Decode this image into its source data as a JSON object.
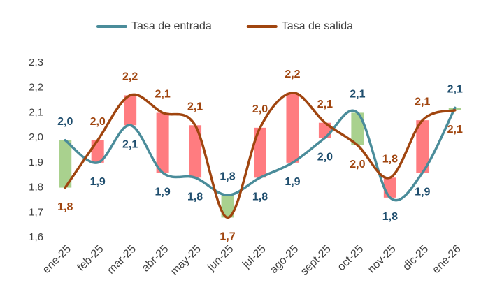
{
  "chart_data": {
    "type": "line",
    "categories": [
      "ene-25",
      "feb-25",
      "mar-25",
      "abr-25",
      "may-25",
      "jun-25",
      "jul-25",
      "ago-25",
      "sept-25",
      "oct-25",
      "nov-25",
      "dic-25",
      "ene-26"
    ],
    "series": [
      {
        "name": "Tasa de entrada",
        "color": "#4a8c9a",
        "label_color": "#1f4e6e",
        "values": [
          1.99,
          1.9,
          2.05,
          1.86,
          1.84,
          1.77,
          1.84,
          1.9,
          2.0,
          2.1,
          1.76,
          1.86,
          2.12
        ],
        "value_labels": [
          "2,0",
          "1,9",
          "2,1",
          "1,9",
          "1,8",
          "1,8",
          "1,8",
          "1,9",
          "2,0",
          "2,1",
          "1,8",
          "1,9",
          "2,1"
        ]
      },
      {
        "name": "Tasa de salida",
        "color": "#a0450f",
        "label_color": "#a0450f",
        "values": [
          1.8,
          1.99,
          2.17,
          2.1,
          2.05,
          1.68,
          2.04,
          2.18,
          2.06,
          1.97,
          1.84,
          2.07,
          2.11
        ],
        "value_labels": [
          "1,8",
          "2,0",
          "2,2",
          "2,1",
          "2,1",
          "1,7",
          "2,0",
          "2,2",
          "2,1",
          "2,0",
          "1,8",
          "2,1",
          "2,1"
        ]
      }
    ],
    "up_bar_color": "#a9d18e",
    "down_bar_color": "#ff7c80",
    "ylim": [
      1.6,
      2.3
    ],
    "yticks": [
      {
        "value": 1.6,
        "label": "1,6"
      },
      {
        "value": 1.7,
        "label": "1,7"
      },
      {
        "value": 1.8,
        "label": "1,8"
      },
      {
        "value": 1.9,
        "label": "1,9"
      },
      {
        "value": 2.0,
        "label": "2,0"
      },
      {
        "value": 2.1,
        "label": "2,1"
      },
      {
        "value": 2.2,
        "label": "2,2"
      },
      {
        "value": 2.3,
        "label": "2,3"
      }
    ],
    "grid": false,
    "legend": "top",
    "smooth": true
  }
}
